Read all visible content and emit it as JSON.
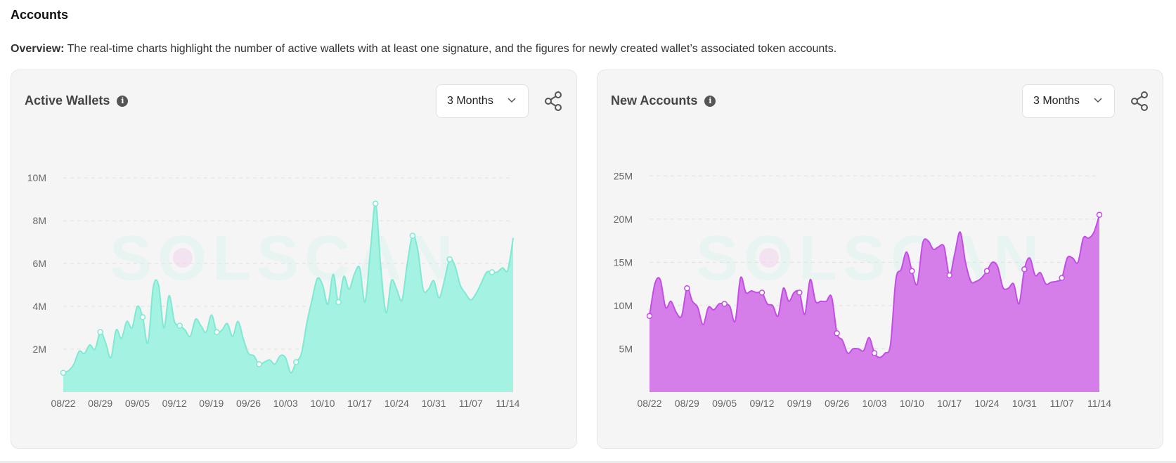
{
  "page": {
    "title": "Accounts",
    "overview_label": "Overview:",
    "overview_text": " The real-time charts highlight the number of active wallets with at least one signature, and the figures for newly created wallet’s associated token accounts."
  },
  "cards": [
    {
      "title": "Active Wallets",
      "range": "3 Months"
    },
    {
      "title": "New Accounts",
      "range": "3 Months"
    }
  ],
  "colors": {
    "active_wallets_fill": "#a3f2e2",
    "active_wallets_line": "#7fe9d3",
    "new_accounts_fill": "#d57de9",
    "new_accounts_line": "#c34ee3"
  },
  "watermark": "SOLSCAN",
  "chart_data": [
    {
      "type": "area",
      "title": "Active Wallets",
      "x_ticks": [
        "08/22",
        "08/29",
        "09/05",
        "09/12",
        "09/19",
        "09/26",
        "10/03",
        "10/10",
        "10/17",
        "10/24",
        "10/31",
        "11/07",
        "11/14"
      ],
      "y_ticks": [
        "2M",
        "4M",
        "6M",
        "8M",
        "10M"
      ],
      "ylim": [
        0,
        10.5
      ],
      "unit": "M",
      "grid": true,
      "x_start": "2024-08-22",
      "values": [
        0.9,
        1.0,
        1.3,
        1.9,
        1.8,
        2.2,
        2.0,
        2.8,
        2.3,
        1.6,
        2.9,
        2.5,
        3.3,
        3.0,
        4.0,
        3.5,
        2.3,
        4.9,
        5.0,
        3.0,
        4.5,
        3.3,
        3.1,
        2.9,
        2.6,
        3.4,
        3.1,
        2.8,
        3.6,
        2.8,
        2.9,
        3.2,
        2.6,
        3.3,
        2.5,
        1.8,
        1.7,
        1.3,
        1.4,
        1.5,
        1.3,
        1.7,
        1.6,
        0.9,
        1.4,
        1.8,
        3.2,
        4.3,
        5.3,
        5.0,
        4.1,
        5.5,
        4.2,
        5.4,
        4.8,
        5.5,
        5.8,
        4.2,
        6.5,
        8.8,
        5.8,
        3.7,
        5.2,
        4.8,
        4.3,
        6.0,
        7.3,
        6.6,
        4.8,
        4.8,
        5.2,
        4.4,
        5.2,
        6.2,
        5.9,
        5.0,
        4.6,
        4.3,
        4.6,
        5.1,
        5.6,
        5.6,
        5.6,
        5.8,
        5.7,
        7.2
      ],
      "markers": [
        0,
        7,
        15,
        22,
        29,
        37,
        44,
        52,
        59,
        66,
        73,
        81
      ]
    },
    {
      "type": "area",
      "title": "New Accounts",
      "x_ticks": [
        "08/22",
        "08/29",
        "09/05",
        "09/12",
        "09/19",
        "09/26",
        "10/03",
        "10/10",
        "10/17",
        "10/24",
        "10/31",
        "11/07",
        "11/14"
      ],
      "y_ticks": [
        "5M",
        "10M",
        "15M",
        "20M",
        "25M"
      ],
      "ylim": [
        0,
        26
      ],
      "unit": "M",
      "grid": true,
      "x_start": "2024-08-22",
      "values": [
        8.8,
        12.5,
        13.0,
        9.8,
        10.5,
        9.2,
        8.8,
        12.0,
        10.5,
        9.8,
        7.8,
        9.8,
        9.5,
        10.2,
        10.2,
        9.9,
        8.2,
        13.2,
        11.5,
        11.7,
        11.5,
        11.5,
        10.2,
        10.0,
        8.8,
        12.0,
        10.5,
        11.5,
        11.5,
        9.0,
        13.0,
        10.5,
        10.5,
        10.5,
        11.0,
        6.8,
        6.0,
        4.5,
        5.0,
        5.0,
        4.8,
        6.3,
        4.5,
        4.0,
        4.5,
        5.5,
        13.0,
        14.2,
        16.2,
        14.0,
        12.5,
        17.2,
        17.5,
        16.5,
        16.8,
        16.8,
        13.5,
        16.0,
        18.5,
        15.0,
        12.8,
        12.8,
        13.2,
        14.0,
        15.0,
        14.5,
        12.1,
        12.0,
        12.5,
        10.2,
        14.2,
        15.5,
        13.5,
        13.8,
        12.5,
        12.7,
        12.8,
        13.2,
        15.5,
        15.5,
        15.0,
        17.8,
        17.8,
        18.5,
        20.5
      ],
      "markers": [
        0,
        7,
        14,
        21,
        28,
        35,
        42,
        49,
        56,
        63,
        70,
        77,
        84
      ]
    }
  ]
}
